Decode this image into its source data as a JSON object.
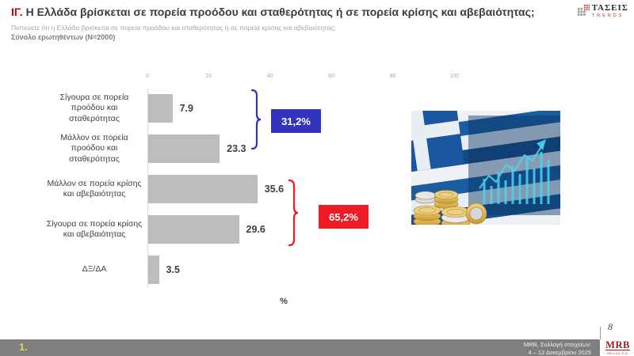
{
  "colors": {
    "accent_red": "#c00000",
    "badge_blue": "#3333bf",
    "badge_red": "#ee1b24",
    "bar_grey": "#bdbdbd",
    "footer_grey": "#7f7f7f",
    "slide_number_yellow": "#dbdb3d"
  },
  "header": {
    "question_number": "ΙΓ.",
    "title": "Η Ελλάδα βρίσκεται σε πορεία προόδου και σταθερότητας ή σε πορεία κρίσης και αβεβαιότητας;",
    "subtitle": "Πιστεύετε ότι η Ελλάδα βρίσκεται σε πορεία προόδου και σταθερότητας ή σε πορεία κρίσης και αβεβαιότητας;",
    "sample": "Σύνολο ερωτηθέντων (Ν=2000)"
  },
  "taseis_logo": {
    "name": "ΤΑΣΕΙΣ",
    "sub": "TRENDS",
    "icon": "grid-squares-icon"
  },
  "chart_data": {
    "type": "bar",
    "orientation": "horizontal",
    "categories": [
      "Σίγουρα σε πορεία προόδου και σταθερότητας",
      "Μάλλον σε πορεία προόδου και σταθερότητας",
      "Μάλλον σε πορεία κρίσης και αβεβαιότητας",
      "Σίγουρα σε πορεία κρίσης και αβεβαιότητας",
      "ΔΞ/ΔΑ"
    ],
    "values": [
      7.9,
      23.3,
      35.6,
      29.6,
      3.5
    ],
    "value_labels": [
      "7.9",
      "23.3",
      "35.6",
      "29.6",
      "3.5"
    ],
    "xlabel": "%",
    "xlim": [
      0,
      100
    ],
    "ticks": [
      0,
      20,
      40,
      60,
      80,
      100
    ],
    "grid": false,
    "legend": "none",
    "bar_color": "#bdbdbd",
    "annotations": [
      {
        "label": "31,2%",
        "color": "#3333bf",
        "covers_categories": [
          0,
          1
        ]
      },
      {
        "label": "65,2%",
        "color": "#ee1b24",
        "covers_categories": [
          2,
          3
        ]
      }
    ]
  },
  "photo": {
    "description": "greek-flag-with-coins-and-stock-chart-photo"
  },
  "footer": {
    "slide_number": "1.",
    "source_line1": "MRB, Συλλογή στοιχείων:",
    "source_line2": "4 – 12 Δεκεμβρίου 2025",
    "page_number": "8",
    "mrb_logo": "MRB",
    "mrb_logo_sub": "HELLAS S.A."
  }
}
